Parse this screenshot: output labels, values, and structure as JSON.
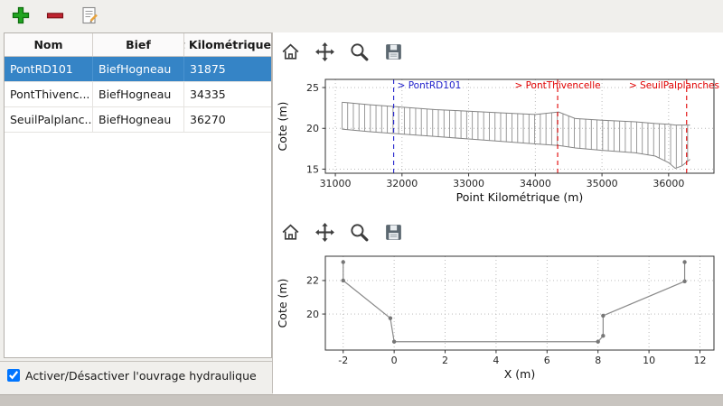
{
  "window": {
    "background": "#f0efec"
  },
  "main_toolbar": {
    "buttons": [
      {
        "name": "add",
        "icon": "plus-icon",
        "color": "#21a521"
      },
      {
        "name": "remove",
        "icon": "minus-icon",
        "color": "#bf2430"
      },
      {
        "name": "edit",
        "icon": "edit-document-icon",
        "color": "#8a8a8a"
      }
    ]
  },
  "table": {
    "headers": [
      "Nom",
      "Bief",
      "Point Kilométrique"
    ],
    "rows": [
      {
        "nom": "PontRD101",
        "bief": "BiefHogneau",
        "pk": "31875"
      },
      {
        "nom": "PontThivenc...",
        "bief": "BiefHogneau",
        "pk": "34335"
      },
      {
        "nom": "SeuilPalplanc...",
        "bief": "BiefHogneau",
        "pk": "36270"
      }
    ],
    "selected_row": 0,
    "selection_color": "#3584c6"
  },
  "checkbox": {
    "label": "Activer/Désactiver l'ouvrage hydraulique",
    "checked": true
  },
  "plot_toolbar": {
    "buttons": [
      "home",
      "pan",
      "zoom",
      "save"
    ]
  },
  "chart_data": [
    {
      "type": "line",
      "name": "longitudinal-profile",
      "xlabel": "Point Kilométrique (m)",
      "ylabel": "Cote (m)",
      "xlim": [
        30850,
        36680
      ],
      "ylim": [
        14.5,
        26
      ],
      "xticks": [
        31000,
        32000,
        33000,
        34000,
        35000,
        36000
      ],
      "yticks": [
        15,
        20,
        25
      ],
      "grid": true,
      "style": "hatched-profile",
      "hatch_step": 85,
      "profile": [
        {
          "x": 31100,
          "top": 23.2,
          "bottom": 19.9
        },
        {
          "x": 31500,
          "top": 22.9,
          "bottom": 19.6
        },
        {
          "x": 32000,
          "top": 22.6,
          "bottom": 19.3
        },
        {
          "x": 32500,
          "top": 22.3,
          "bottom": 19.0
        },
        {
          "x": 33000,
          "top": 22.1,
          "bottom": 18.7
        },
        {
          "x": 33500,
          "top": 21.9,
          "bottom": 18.4
        },
        {
          "x": 34000,
          "top": 21.7,
          "bottom": 18.1
        },
        {
          "x": 34350,
          "top": 22.0,
          "bottom": 17.9
        },
        {
          "x": 34600,
          "top": 21.2,
          "bottom": 17.6
        },
        {
          "x": 35000,
          "top": 21.0,
          "bottom": 17.3
        },
        {
          "x": 35500,
          "top": 20.8,
          "bottom": 17.0
        },
        {
          "x": 35800,
          "top": 20.6,
          "bottom": 16.6
        },
        {
          "x": 36000,
          "top": 20.5,
          "bottom": 15.8
        },
        {
          "x": 36100,
          "top": 20.4,
          "bottom": 15.1
        },
        {
          "x": 36200,
          "top": 20.4,
          "bottom": 15.4
        },
        {
          "x": 36320,
          "top": 20.4,
          "bottom": 16.2
        }
      ],
      "annotations": [
        {
          "x": 31875,
          "label": "> PontRD101",
          "color": "#2222cc",
          "anchor": "start"
        },
        {
          "x": 34335,
          "label": "> PontThivencelle",
          "color": "#e00000",
          "anchor": "middle"
        },
        {
          "x": 36270,
          "label": "> SeuilPalplanches",
          "color": "#e00000",
          "anchor": "middle"
        }
      ]
    },
    {
      "type": "line",
      "name": "cross-section",
      "xlabel": "X (m)",
      "ylabel": "Cote (m)",
      "xlim": [
        -2.7,
        12.55
      ],
      "ylim": [
        17.85,
        23.45
      ],
      "xticks": [
        -2,
        0,
        2,
        4,
        6,
        8,
        10,
        12
      ],
      "yticks": [
        20,
        22
      ],
      "grid": true,
      "line_color": "#8a8a8a",
      "marker": "circle",
      "points": [
        [
          -2,
          23.1
        ],
        [
          -2,
          22.0
        ],
        [
          -0.15,
          19.75
        ],
        [
          0,
          18.35
        ],
        [
          8,
          18.35
        ],
        [
          8.2,
          18.7
        ],
        [
          8.2,
          19.9
        ],
        [
          11.4,
          21.95
        ],
        [
          11.4,
          23.1
        ]
      ]
    }
  ]
}
